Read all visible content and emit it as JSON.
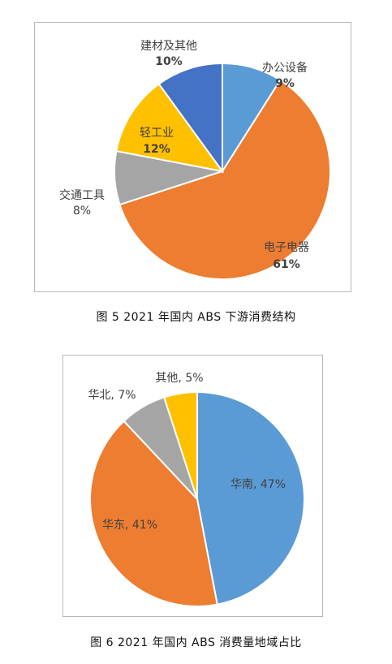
{
  "colors": {
    "blue": "#5b9bd5",
    "orange": "#ed7d31",
    "gray": "#a5a5a5",
    "yellow": "#ffc000",
    "darkblue": "#4472c4"
  },
  "captions": {
    "fig5": "图 5  2021 年国内 ABS 下游消费结构",
    "fig6": "图 6  2021 年国内 ABS 消费量地域占比"
  },
  "chart_data": [
    {
      "type": "pie",
      "title": "",
      "slices": [
        {
          "name": "办公设备",
          "pct": "9%",
          "value": 9,
          "color": "#5b9bd5"
        },
        {
          "name": "电子电器",
          "pct": "61%",
          "value": 61,
          "color": "#ed7d31"
        },
        {
          "name": "交通工具",
          "pct": "8%",
          "value": 8,
          "color": "#a5a5a5"
        },
        {
          "name": "轻工业",
          "pct": "12%",
          "value": 12,
          "color": "#ffc000"
        },
        {
          "name": "建材及其他",
          "pct": "10%",
          "value": 10,
          "color": "#4472c4"
        }
      ]
    },
    {
      "type": "pie",
      "title": "",
      "slices": [
        {
          "name": "华南, 47%",
          "value": 47,
          "color": "#5b9bd5"
        },
        {
          "name": "华东, 41%",
          "value": 41,
          "color": "#ed7d31"
        },
        {
          "name": "华北, 7%",
          "value": 7,
          "color": "#a5a5a5"
        },
        {
          "name": "其他, 5%",
          "value": 5,
          "color": "#ffc000"
        }
      ]
    }
  ]
}
